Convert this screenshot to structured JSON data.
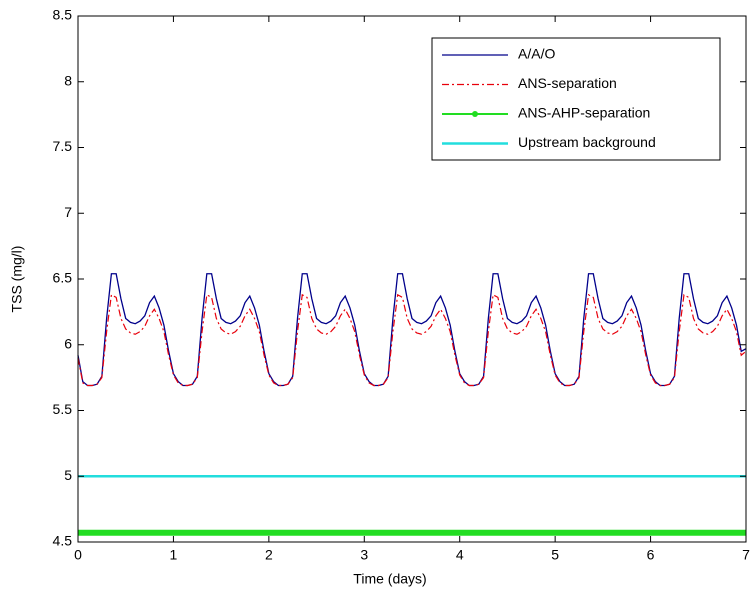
{
  "chart_data": {
    "type": "line",
    "xlabel": "Time (days)",
    "ylabel": "TSS (mg/l)",
    "xlim": [
      0,
      7
    ],
    "xticks": [
      0,
      1,
      2,
      3,
      4,
      5,
      6,
      7
    ],
    "ylim": [
      4.5,
      8.5
    ],
    "yticks": [
      4.5,
      5,
      5.5,
      6,
      6.5,
      7,
      7.5,
      8,
      8.5
    ],
    "legend": "upper right",
    "x": [
      0,
      0.05,
      0.1,
      0.15,
      0.2,
      0.25,
      0.3,
      0.35,
      0.4,
      0.45,
      0.5,
      0.55,
      0.6,
      0.65,
      0.7,
      0.75,
      0.8,
      0.85,
      0.9,
      0.95,
      1,
      1.05,
      1.1,
      1.15,
      1.2,
      1.25,
      1.3,
      1.35,
      1.4,
      1.45,
      1.5,
      1.55,
      1.6,
      1.65,
      1.7,
      1.75,
      1.8,
      1.85,
      1.9,
      1.95,
      2,
      2.05,
      2.1,
      2.15,
      2.2,
      2.25,
      2.3,
      2.35,
      2.4,
      2.45,
      2.5,
      2.55,
      2.6,
      2.65,
      2.7,
      2.75,
      2.8,
      2.85,
      2.9,
      2.95,
      3,
      3.05,
      3.1,
      3.15,
      3.2,
      3.25,
      3.3,
      3.35,
      3.4,
      3.45,
      3.5,
      3.55,
      3.6,
      3.65,
      3.7,
      3.75,
      3.8,
      3.85,
      3.9,
      3.95,
      4,
      4.05,
      4.1,
      4.15,
      4.2,
      4.25,
      4.3,
      4.35,
      4.4,
      4.45,
      4.5,
      4.55,
      4.6,
      4.65,
      4.7,
      4.75,
      4.8,
      4.85,
      4.9,
      4.95,
      5,
      5.05,
      5.1,
      5.15,
      5.2,
      5.25,
      5.3,
      5.35,
      5.4,
      5.45,
      5.5,
      5.55,
      5.6,
      5.65,
      5.7,
      5.75,
      5.8,
      5.85,
      5.9,
      5.95,
      6,
      6.05,
      6.1,
      6.15,
      6.2,
      6.25,
      6.3,
      6.35,
      6.4,
      6.45,
      6.5,
      6.55,
      6.6,
      6.65,
      6.7,
      6.75,
      6.8,
      6.85,
      6.9,
      6.95,
      7
    ],
    "series": [
      {
        "name": "A/A/O",
        "color": "#00008b",
        "style": "solid",
        "values": [
          5.92,
          5.72,
          5.69,
          5.69,
          5.7,
          5.76,
          6.2,
          6.54,
          6.54,
          6.35,
          6.2,
          6.17,
          6.16,
          6.18,
          6.22,
          6.32,
          6.37,
          6.28,
          6.15,
          5.95,
          5.78,
          5.72,
          5.69,
          5.69,
          5.7,
          5.76,
          6.2,
          6.54,
          6.54,
          6.35,
          6.2,
          6.17,
          6.16,
          6.18,
          6.22,
          6.32,
          6.37,
          6.28,
          6.15,
          5.95,
          5.78,
          5.72,
          5.69,
          5.69,
          5.7,
          5.76,
          6.2,
          6.54,
          6.54,
          6.35,
          6.2,
          6.17,
          6.16,
          6.18,
          6.22,
          6.32,
          6.37,
          6.28,
          6.15,
          5.95,
          5.78,
          5.72,
          5.69,
          5.69,
          5.7,
          5.76,
          6.2,
          6.54,
          6.54,
          6.35,
          6.2,
          6.17,
          6.16,
          6.18,
          6.22,
          6.32,
          6.37,
          6.28,
          6.15,
          5.95,
          5.78,
          5.72,
          5.69,
          5.69,
          5.7,
          5.76,
          6.2,
          6.54,
          6.54,
          6.35,
          6.2,
          6.17,
          6.16,
          6.18,
          6.22,
          6.32,
          6.37,
          6.28,
          6.15,
          5.95,
          5.78,
          5.72,
          5.69,
          5.69,
          5.7,
          5.76,
          6.2,
          6.54,
          6.54,
          6.35,
          6.2,
          6.17,
          6.16,
          6.18,
          6.22,
          6.32,
          6.37,
          6.28,
          6.15,
          5.95,
          5.78,
          5.72,
          5.69,
          5.69,
          5.7,
          5.76,
          6.2,
          6.54,
          6.54,
          6.35,
          6.2,
          6.17,
          6.16,
          6.18,
          6.22,
          6.32,
          6.37,
          6.28,
          6.15,
          5.95,
          5.97
        ]
      },
      {
        "name": "ANS-separation",
        "color": "#e8000b",
        "style": "dashdot",
        "values": [
          5.9,
          5.71,
          5.69,
          5.69,
          5.7,
          5.75,
          6.1,
          6.38,
          6.36,
          6.2,
          6.12,
          6.09,
          6.08,
          6.1,
          6.14,
          6.22,
          6.27,
          6.2,
          6.1,
          5.92,
          5.77,
          5.71,
          5.69,
          5.69,
          5.7,
          5.75,
          6.1,
          6.38,
          6.36,
          6.2,
          6.12,
          6.09,
          6.08,
          6.1,
          6.14,
          6.22,
          6.27,
          6.2,
          6.1,
          5.92,
          5.77,
          5.71,
          5.69,
          5.69,
          5.7,
          5.75,
          6.1,
          6.38,
          6.36,
          6.2,
          6.12,
          6.09,
          6.08,
          6.1,
          6.14,
          6.22,
          6.27,
          6.2,
          6.1,
          5.92,
          5.77,
          5.71,
          5.69,
          5.69,
          5.7,
          5.75,
          6.1,
          6.38,
          6.36,
          6.2,
          6.12,
          6.09,
          6.08,
          6.1,
          6.14,
          6.22,
          6.27,
          6.2,
          6.1,
          5.92,
          5.77,
          5.71,
          5.69,
          5.69,
          5.7,
          5.75,
          6.1,
          6.38,
          6.36,
          6.2,
          6.12,
          6.09,
          6.08,
          6.1,
          6.14,
          6.22,
          6.27,
          6.2,
          6.1,
          5.92,
          5.77,
          5.71,
          5.69,
          5.69,
          5.7,
          5.75,
          6.1,
          6.38,
          6.36,
          6.2,
          6.12,
          6.09,
          6.08,
          6.1,
          6.14,
          6.22,
          6.27,
          6.2,
          6.1,
          5.92,
          5.77,
          5.71,
          5.69,
          5.69,
          5.7,
          5.75,
          6.1,
          6.38,
          6.36,
          6.2,
          6.12,
          6.09,
          6.08,
          6.1,
          6.14,
          6.22,
          6.27,
          6.2,
          6.1,
          5.92,
          5.95
        ]
      },
      {
        "name": "ANS-AHP-separation",
        "color": "#22dd22",
        "style": "marker",
        "values": [
          4.57,
          4.57,
          4.57,
          4.57,
          4.57,
          4.57,
          4.57,
          4.57,
          4.57,
          4.57,
          4.57,
          4.57,
          4.57,
          4.57,
          4.57,
          4.57,
          4.57,
          4.57,
          4.57,
          4.57,
          4.57,
          4.57,
          4.57,
          4.57,
          4.57,
          4.57,
          4.57,
          4.57,
          4.57,
          4.57,
          4.57,
          4.57,
          4.57,
          4.57,
          4.57,
          4.57,
          4.57,
          4.57,
          4.57,
          4.57,
          4.57,
          4.57,
          4.57,
          4.57,
          4.57,
          4.57,
          4.57,
          4.57,
          4.57,
          4.57,
          4.57,
          4.57,
          4.57,
          4.57,
          4.57,
          4.57,
          4.57,
          4.57,
          4.57,
          4.57,
          4.57,
          4.57,
          4.57,
          4.57,
          4.57,
          4.57,
          4.57,
          4.57,
          4.57,
          4.57,
          4.57,
          4.57,
          4.57,
          4.57,
          4.57,
          4.57,
          4.57,
          4.57,
          4.57,
          4.57,
          4.57,
          4.57,
          4.57,
          4.57,
          4.57,
          4.57,
          4.57,
          4.57,
          4.57,
          4.57,
          4.57,
          4.57,
          4.57,
          4.57,
          4.57,
          4.57,
          4.57,
          4.57,
          4.57,
          4.57,
          4.57,
          4.57,
          4.57,
          4.57,
          4.57,
          4.57,
          4.57,
          4.57,
          4.57,
          4.57,
          4.57,
          4.57,
          4.57,
          4.57,
          4.57,
          4.57,
          4.57,
          4.57,
          4.57,
          4.57,
          4.57,
          4.57,
          4.57,
          4.57,
          4.57,
          4.57,
          4.57,
          4.57,
          4.57,
          4.57,
          4.57,
          4.57,
          4.57,
          4.57,
          4.57,
          4.57,
          4.57,
          4.57,
          4.57,
          4.57,
          4.57
        ]
      },
      {
        "name": "Upstream background",
        "color": "#22dddd",
        "style": "solid",
        "values": [
          5,
          5,
          5,
          5,
          5,
          5,
          5,
          5,
          5,
          5,
          5,
          5,
          5,
          5,
          5,
          5,
          5,
          5,
          5,
          5,
          5,
          5,
          5,
          5,
          5,
          5,
          5,
          5,
          5,
          5,
          5,
          5,
          5,
          5,
          5,
          5,
          5,
          5,
          5,
          5,
          5,
          5,
          5,
          5,
          5,
          5,
          5,
          5,
          5,
          5,
          5,
          5,
          5,
          5,
          5,
          5,
          5,
          5,
          5,
          5,
          5,
          5,
          5,
          5,
          5,
          5,
          5,
          5,
          5,
          5,
          5,
          5,
          5,
          5,
          5,
          5,
          5,
          5,
          5,
          5,
          5,
          5,
          5,
          5,
          5,
          5,
          5,
          5,
          5,
          5,
          5,
          5,
          5,
          5,
          5,
          5,
          5,
          5,
          5,
          5,
          5,
          5,
          5,
          5,
          5,
          5,
          5,
          5,
          5,
          5,
          5,
          5,
          5,
          5,
          5,
          5,
          5,
          5,
          5,
          5,
          5,
          5,
          5,
          5,
          5,
          5,
          5,
          5,
          5,
          5,
          5,
          5,
          5,
          5,
          5,
          5,
          5,
          5,
          5,
          5,
          5
        ]
      }
    ]
  }
}
